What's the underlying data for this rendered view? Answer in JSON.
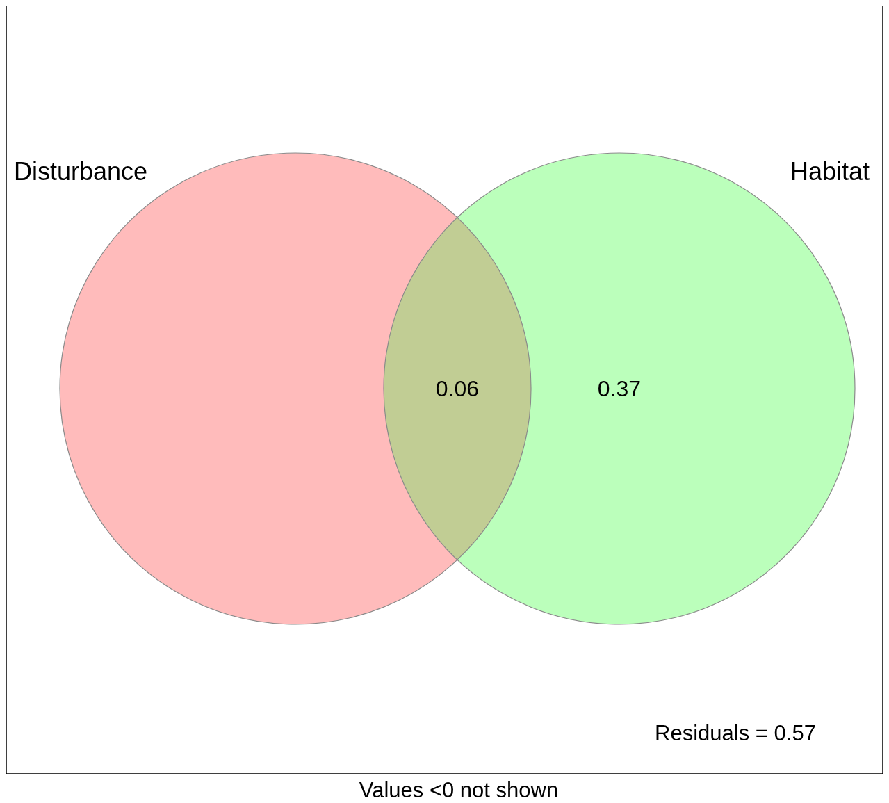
{
  "chart_data": {
    "type": "other",
    "categories": [
      "Disturbance",
      null,
      "Habitat"
    ],
    "values": [
      null,
      0.06,
      0.37
    ],
    "data_labels": true,
    "colors": [
      "#ffbbbb",
      "#c1cd94",
      "#bbffbb"
    ],
    "annotations": [
      "Residuals = 0.57",
      "Values <0 not shown"
    ]
  }
}
